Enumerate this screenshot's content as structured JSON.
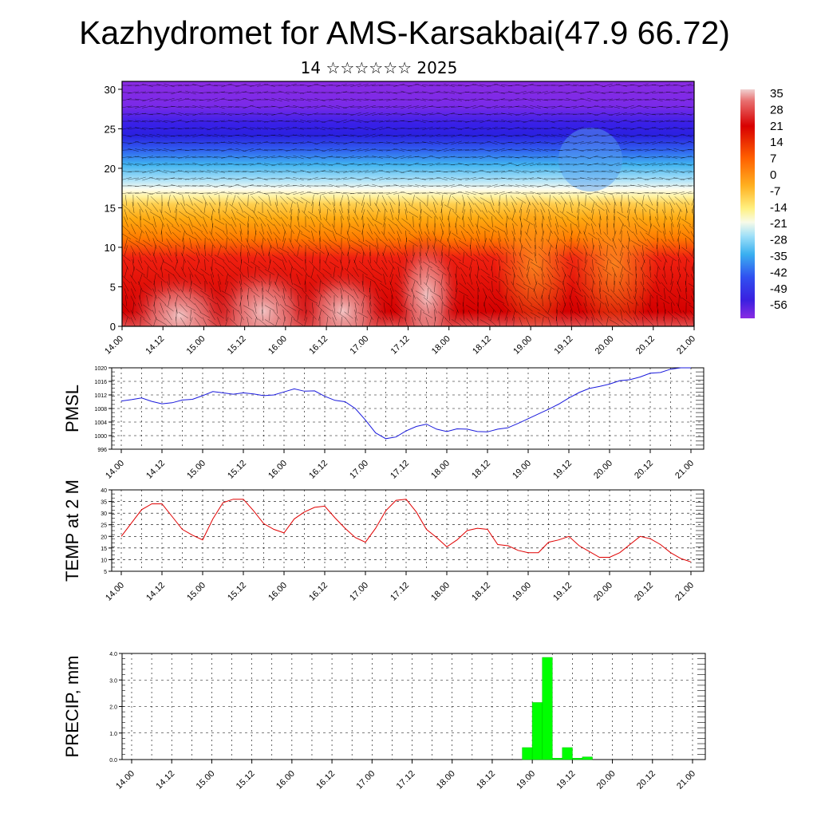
{
  "title": "Kazhydromet for AMS-Karsakbai(47.9 66.72)",
  "subtitle": "14 ☆☆☆☆☆☆ 2025",
  "colors": {
    "pmsl_line": "#1a1adc",
    "temp_line": "#e00000",
    "precip_bar": "#00ff00",
    "grid": "#000000"
  },
  "chart_data": [
    {
      "type": "heatmap",
      "name": "cross-section",
      "title": "",
      "xlabel": "",
      "ylabel": "",
      "x_ticks": [
        "14.00",
        "14.12",
        "15.00",
        "15.12",
        "16.00",
        "16.12",
        "17.00",
        "17.12",
        "18.00",
        "18.12",
        "19.00",
        "19.12",
        "20.00",
        "20.12",
        "21.00"
      ],
      "y_ticks": [
        0,
        5,
        10,
        15,
        20,
        25,
        30
      ],
      "ylim": [
        0,
        31
      ],
      "colorbar_labels": [
        "35",
        "28",
        "21",
        "14",
        "7",
        "0",
        "-7",
        "-14",
        "-21",
        "-28",
        "-35",
        "-42",
        "-49",
        "-56"
      ],
      "colorscale": [
        "#f4f4f4",
        "#e8a0a0",
        "#e03030",
        "#d00000",
        "#ff4000",
        "#ff8000",
        "#ffb000",
        "#ffe060",
        "#fff8b0",
        "#b0e8ff",
        "#40b0f0",
        "#3070f0",
        "#3030e0",
        "#6020e0",
        "#8a2be2"
      ]
    },
    {
      "type": "line",
      "name": "PMSL",
      "ylabel": "PMSL",
      "x_ticks": [
        "14.00",
        "14.12",
        "15.00",
        "15.12",
        "16.00",
        "16.12",
        "17.00",
        "17.12",
        "18.00",
        "18.12",
        "19.00",
        "19.12",
        "20.00",
        "20.12",
        "21.00"
      ],
      "ylim": [
        996,
        1020
      ],
      "y_ticks": [
        996,
        1000,
        1004,
        1008,
        1012,
        1016,
        1020
      ],
      "series": [
        {
          "x": [
            0,
            3,
            6,
            9,
            12,
            15,
            18,
            21,
            24,
            27,
            30,
            33,
            36,
            39,
            42,
            45,
            48,
            51,
            54,
            57,
            60,
            63,
            66,
            69,
            72,
            75,
            78,
            81,
            84,
            87,
            90,
            93,
            96,
            99,
            102,
            105,
            108,
            111,
            114,
            117,
            120,
            123,
            126,
            129,
            132,
            135,
            138,
            141,
            144,
            147,
            150,
            153,
            156,
            159,
            162,
            165,
            168
          ],
          "values": [
            1010.2,
            1010.6,
            1011.1,
            1010.1,
            1009.4,
            1009.7,
            1010.5,
            1010.7,
            1011.8,
            1013.0,
            1012.6,
            1012.2,
            1012.6,
            1012.3,
            1011.8,
            1012.0,
            1012.9,
            1013.8,
            1013.1,
            1013.2,
            1011.6,
            1010.4,
            1010.0,
            1008.0,
            1004.6,
            1000.8,
            999.1,
            999.6,
            1001.4,
            1002.7,
            1003.4,
            1001.9,
            1001.2,
            1002.0,
            1001.9,
            1001.2,
            1001.1,
            1001.9,
            1002.3,
            1003.6,
            1005.0,
            1006.4,
            1007.8,
            1009.3,
            1011.1,
            1012.7,
            1013.9,
            1014.5,
            1015.2,
            1016.2,
            1016.5,
            1017.3,
            1018.4,
            1018.6,
            1019.6,
            1020.4,
            1021.0
          ]
        }
      ]
    },
    {
      "type": "line",
      "name": "TEMP at 2 M",
      "ylabel": "TEMP at 2 M",
      "x_ticks": [
        "14.00",
        "14.12",
        "15.00",
        "15.12",
        "16.00",
        "16.12",
        "17.00",
        "17.12",
        "18.00",
        "18.12",
        "19.00",
        "19.12",
        "20.00",
        "20.12",
        "21.00"
      ],
      "ylim": [
        5,
        40
      ],
      "y_ticks": [
        5,
        10,
        15,
        20,
        25,
        30,
        35,
        40
      ],
      "series": [
        {
          "x": [
            0,
            6,
            9,
            12,
            15,
            18,
            21,
            24,
            27,
            30,
            33,
            36,
            39,
            42,
            45,
            48,
            51,
            54,
            57,
            60,
            63,
            66,
            69,
            72,
            75,
            78,
            81,
            84,
            87,
            90,
            93,
            96,
            99,
            102,
            105,
            108,
            111,
            114,
            117,
            120,
            123,
            126,
            129,
            132,
            135,
            138,
            141,
            144,
            147,
            150,
            153,
            156,
            159,
            162,
            165,
            168
          ],
          "values": [
            20,
            31.5,
            34,
            34,
            28.5,
            23,
            20.5,
            18.5,
            27.5,
            34.5,
            36,
            36,
            31,
            25.5,
            23,
            21.5,
            27.5,
            30.5,
            32.5,
            33,
            28,
            23.5,
            19.5,
            17.5,
            23.5,
            31,
            35.5,
            36,
            30.5,
            23,
            19.5,
            15.5,
            18.5,
            22.5,
            23.5,
            23,
            16.5,
            16,
            14,
            13,
            13,
            17.5,
            18.5,
            20,
            16,
            13.5,
            11,
            11,
            13,
            16.5,
            20,
            19,
            16.5,
            13,
            10.5,
            9
          ]
        }
      ]
    },
    {
      "type": "bar",
      "name": "PRECIP",
      "ylabel": "PRECIP, mm",
      "x_ticks": [
        "14.00",
        "14.12",
        "15.00",
        "15.12",
        "16.00",
        "16.12",
        "17.00",
        "17.12",
        "18.00",
        "18.12",
        "19.00",
        "19.12",
        "20.00",
        "20.12",
        "21.00"
      ],
      "ylim": [
        0,
        4
      ],
      "y_ticks": [
        "0.0",
        "1.0",
        "2.0",
        "3.0",
        "4.0"
      ],
      "series": [
        {
          "x_start_hours": [
            117,
            120,
            123,
            126,
            129,
            132,
            135
          ],
          "values": [
            0.45,
            2.15,
            3.85,
            0.05,
            0.45,
            0.05,
            0.1
          ]
        }
      ]
    }
  ]
}
